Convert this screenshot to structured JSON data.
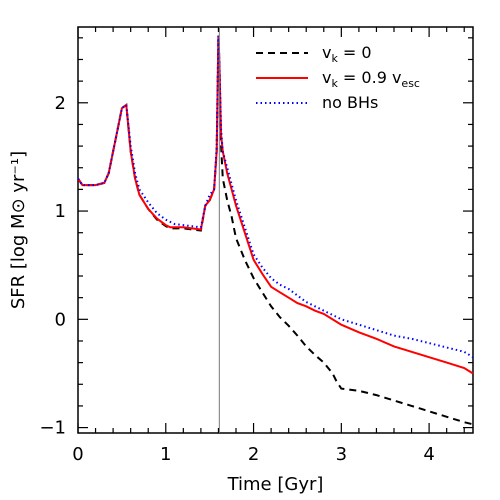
{
  "chart_data": {
    "type": "line",
    "xlabel": "Time [Gyr]",
    "ylabel": "SFR [log M⊙ yr⁻¹]",
    "xlim": [
      0,
      4.5
    ],
    "ylim": [
      -1.05,
      2.7
    ],
    "xticks": [
      0,
      1,
      2,
      3,
      4
    ],
    "yticks": [
      -1,
      0,
      1,
      2
    ],
    "xtick_labels": [
      "0",
      "1",
      "2",
      "3",
      "4"
    ],
    "ytick_labels": [
      "−1",
      "0",
      "1",
      "2"
    ],
    "vline_x": 1.61,
    "legend_position": "top-right",
    "legend": [
      {
        "main": "v",
        "sub": "k",
        "rest": " = 0",
        "sub2": ""
      },
      {
        "main": "v",
        "sub": "k",
        "rest": " = 0.9 v",
        "sub2": "esc"
      },
      {
        "main": "no BHs",
        "sub": "",
        "rest": "",
        "sub2": ""
      }
    ],
    "series": [
      {
        "name": "v_k = 0",
        "color": "#000000",
        "style": "dashed",
        "x": [
          0.0,
          0.05,
          0.1,
          0.2,
          0.3,
          0.35,
          0.4,
          0.45,
          0.5,
          0.55,
          0.6,
          0.65,
          0.7,
          0.8,
          0.9,
          1.0,
          1.05,
          1.1,
          1.2,
          1.3,
          1.4,
          1.45,
          1.5,
          1.55,
          1.58,
          1.6,
          1.61,
          1.63,
          1.65,
          1.7,
          1.75,
          1.8,
          1.9,
          2.0,
          2.1,
          2.2,
          2.3,
          2.4,
          2.5,
          2.6,
          2.7,
          2.8,
          2.9,
          2.95,
          3.0,
          3.2,
          3.4,
          3.6,
          3.8,
          4.0,
          4.2,
          4.4,
          4.5
        ],
        "y": [
          1.3,
          1.24,
          1.24,
          1.24,
          1.26,
          1.35,
          1.55,
          1.75,
          1.95,
          1.98,
          1.55,
          1.3,
          1.15,
          1.02,
          0.92,
          0.86,
          0.84,
          0.84,
          0.84,
          0.83,
          0.82,
          1.05,
          1.1,
          1.2,
          1.55,
          2.62,
          2.4,
          1.6,
          1.3,
          1.1,
          0.95,
          0.75,
          0.55,
          0.38,
          0.25,
          0.12,
          0.02,
          -0.06,
          -0.15,
          -0.25,
          -0.33,
          -0.4,
          -0.5,
          -0.58,
          -0.64,
          -0.66,
          -0.7,
          -0.75,
          -0.8,
          -0.85,
          -0.9,
          -0.95,
          -0.97
        ]
      },
      {
        "name": "v_k = 0.9 v_esc",
        "color": "#ff0000",
        "style": "solid",
        "x": [
          0.0,
          0.05,
          0.1,
          0.2,
          0.3,
          0.35,
          0.4,
          0.45,
          0.5,
          0.55,
          0.6,
          0.65,
          0.7,
          0.8,
          0.9,
          1.0,
          1.05,
          1.1,
          1.2,
          1.3,
          1.4,
          1.45,
          1.5,
          1.55,
          1.58,
          1.6,
          1.61,
          1.63,
          1.65,
          1.7,
          1.75,
          1.8,
          1.9,
          2.0,
          2.1,
          2.2,
          2.3,
          2.4,
          2.5,
          2.6,
          2.7,
          2.8,
          3.0,
          3.2,
          3.4,
          3.6,
          3.8,
          4.0,
          4.2,
          4.4,
          4.5
        ],
        "y": [
          1.3,
          1.24,
          1.24,
          1.24,
          1.26,
          1.35,
          1.55,
          1.75,
          1.95,
          1.98,
          1.55,
          1.3,
          1.15,
          1.02,
          0.93,
          0.87,
          0.85,
          0.85,
          0.85,
          0.84,
          0.83,
          1.05,
          1.1,
          1.2,
          1.55,
          2.62,
          2.4,
          1.7,
          1.55,
          1.35,
          1.2,
          1.05,
          0.8,
          0.55,
          0.42,
          0.3,
          0.25,
          0.2,
          0.15,
          0.12,
          0.08,
          0.05,
          -0.05,
          -0.12,
          -0.18,
          -0.25,
          -0.3,
          -0.35,
          -0.4,
          -0.45,
          -0.5
        ]
      },
      {
        "name": "no BHs",
        "color": "#0000ff",
        "style": "dotted",
        "x": [
          0.0,
          0.05,
          0.1,
          0.2,
          0.3,
          0.35,
          0.4,
          0.45,
          0.5,
          0.55,
          0.6,
          0.65,
          0.7,
          0.8,
          0.9,
          1.0,
          1.05,
          1.1,
          1.2,
          1.3,
          1.4,
          1.45,
          1.5,
          1.55,
          1.58,
          1.6,
          1.61,
          1.63,
          1.65,
          1.7,
          1.75,
          1.8,
          1.9,
          2.0,
          2.1,
          2.2,
          2.3,
          2.4,
          2.5,
          2.6,
          2.7,
          2.8,
          3.0,
          3.2,
          3.4,
          3.6,
          3.8,
          4.0,
          4.2,
          4.4,
          4.5
        ],
        "y": [
          1.3,
          1.24,
          1.24,
          1.24,
          1.26,
          1.35,
          1.55,
          1.75,
          1.95,
          1.98,
          1.6,
          1.35,
          1.2,
          1.08,
          0.98,
          0.92,
          0.9,
          0.88,
          0.87,
          0.86,
          0.85,
          1.05,
          1.15,
          1.2,
          1.6,
          2.62,
          2.4,
          1.75,
          1.55,
          1.4,
          1.25,
          1.1,
          0.85,
          0.6,
          0.48,
          0.38,
          0.32,
          0.28,
          0.22,
          0.16,
          0.12,
          0.08,
          0.0,
          -0.05,
          -0.1,
          -0.15,
          -0.18,
          -0.22,
          -0.26,
          -0.3,
          -0.35
        ]
      }
    ]
  }
}
